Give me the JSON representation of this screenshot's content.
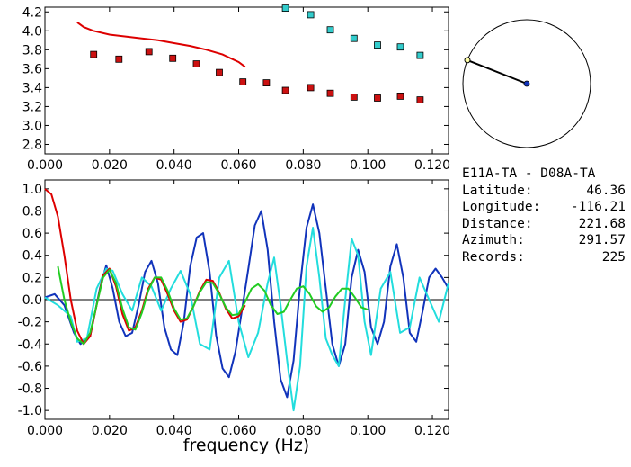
{
  "chart_data": [
    {
      "type": "scatter",
      "xlim": [
        0.0,
        0.125
      ],
      "ylim": [
        2.7,
        4.25
      ],
      "xticks": [
        "0.000",
        "0.020",
        "0.040",
        "0.060",
        "0.080",
        "0.100",
        "0.120"
      ],
      "yticks": [
        "2.8",
        "3.0",
        "3.2",
        "3.4",
        "3.6",
        "3.8",
        "4.0",
        "4.2"
      ],
      "series": [
        {
          "kind": "line",
          "color": "#dd0000",
          "x": [
            0.01,
            0.012,
            0.015,
            0.02,
            0.025,
            0.03,
            0.035,
            0.04,
            0.045,
            0.05,
            0.055,
            0.06,
            0.062
          ],
          "y": [
            4.09,
            4.04,
            4.0,
            3.96,
            3.94,
            3.92,
            3.9,
            3.87,
            3.84,
            3.8,
            3.75,
            3.67,
            3.62
          ]
        },
        {
          "kind": "squares",
          "color": "#cc1111",
          "x": [
            0.0151,
            0.0229,
            0.0322,
            0.0396,
            0.0469,
            0.054,
            0.0613,
            0.0686,
            0.0745,
            0.0823,
            0.0884,
            0.0957,
            0.103,
            0.1101,
            0.1162
          ],
          "y": [
            3.75,
            3.7,
            3.78,
            3.71,
            3.65,
            3.56,
            3.46,
            3.45,
            3.37,
            3.4,
            3.34,
            3.3,
            3.29,
            3.31,
            3.27
          ]
        },
        {
          "kind": "squares",
          "color": "#33cccc",
          "x": [
            0.0745,
            0.0823,
            0.0884,
            0.0957,
            0.103,
            0.1101,
            0.1162
          ],
          "y": [
            4.24,
            4.17,
            4.01,
            3.92,
            3.85,
            3.83,
            3.74
          ]
        }
      ]
    },
    {
      "type": "line",
      "xlim": [
        0.0,
        0.125
      ],
      "ylim": [
        -1.08,
        1.08
      ],
      "xlabel": "frequency (Hz)",
      "xticks": [
        "0.000",
        "0.020",
        "0.040",
        "0.060",
        "0.080",
        "0.100",
        "0.120"
      ],
      "yticks": [
        "1.0",
        "0.8",
        "0.6",
        "0.4",
        "0.2",
        "0.0",
        "-0.2",
        "-0.4",
        "-0.6",
        "-0.8",
        "-1.0"
      ],
      "series": [
        {
          "color": "#1133bb",
          "x": [
            0.0,
            0.003,
            0.006,
            0.009,
            0.011,
            0.014,
            0.017,
            0.019,
            0.021,
            0.023,
            0.025,
            0.027,
            0.029,
            0.031,
            0.033,
            0.035,
            0.037,
            0.039,
            0.041,
            0.043,
            0.045,
            0.047,
            0.049,
            0.051,
            0.053,
            0.055,
            0.057,
            0.059,
            0.061,
            0.063,
            0.065,
            0.067,
            0.069,
            0.071,
            0.073,
            0.075,
            0.077,
            0.079,
            0.081,
            0.083,
            0.085,
            0.087,
            0.089,
            0.091,
            0.093,
            0.095,
            0.097,
            0.099,
            0.101,
            0.103,
            0.105,
            0.107,
            0.109,
            0.111,
            0.113,
            0.115,
            0.117,
            0.119,
            0.121,
            0.123,
            0.125
          ],
          "y": [
            0.02,
            0.05,
            -0.05,
            -0.3,
            -0.4,
            -0.33,
            0.1,
            0.31,
            0.1,
            -0.2,
            -0.33,
            -0.3,
            -0.05,
            0.25,
            0.35,
            0.15,
            -0.25,
            -0.45,
            -0.5,
            -0.2,
            0.3,
            0.56,
            0.6,
            0.25,
            -0.32,
            -0.62,
            -0.7,
            -0.47,
            -0.1,
            0.28,
            0.67,
            0.8,
            0.45,
            -0.2,
            -0.72,
            -0.88,
            -0.55,
            0.12,
            0.65,
            0.86,
            0.6,
            0.1,
            -0.4,
            -0.6,
            -0.4,
            0.2,
            0.45,
            0.25,
            -0.25,
            -0.4,
            -0.2,
            0.3,
            0.5,
            0.2,
            -0.3,
            -0.38,
            -0.1,
            0.2,
            0.28,
            0.2,
            0.1
          ]
        },
        {
          "color": "#22dddd",
          "x": [
            0.0,
            0.004,
            0.008,
            0.01,
            0.013,
            0.016,
            0.019,
            0.021,
            0.024,
            0.027,
            0.03,
            0.033,
            0.036,
            0.039,
            0.042,
            0.045,
            0.048,
            0.051,
            0.054,
            0.057,
            0.06,
            0.063,
            0.066,
            0.069,
            0.071,
            0.073,
            0.075,
            0.077,
            0.079,
            0.081,
            0.083,
            0.085,
            0.087,
            0.089,
            0.091,
            0.093,
            0.095,
            0.097,
            0.099,
            0.101,
            0.104,
            0.107,
            0.11,
            0.113,
            0.116,
            0.119,
            0.122,
            0.125
          ],
          "y": [
            0.02,
            -0.05,
            -0.15,
            -0.38,
            -0.35,
            0.1,
            0.28,
            0.26,
            0.05,
            -0.1,
            0.2,
            0.12,
            -0.1,
            0.1,
            0.26,
            0.05,
            -0.4,
            -0.45,
            0.2,
            0.35,
            -0.2,
            -0.52,
            -0.3,
            0.15,
            0.38,
            -0.05,
            -0.55,
            -1.0,
            -0.6,
            0.3,
            0.65,
            0.2,
            -0.35,
            -0.5,
            -0.6,
            0.0,
            0.55,
            0.4,
            -0.2,
            -0.5,
            0.1,
            0.25,
            -0.3,
            -0.25,
            0.2,
            0.0,
            -0.2,
            0.15
          ]
        },
        {
          "color": "#dd0000",
          "x": [
            0.0,
            0.002,
            0.004,
            0.006,
            0.008,
            0.01,
            0.012,
            0.014,
            0.016,
            0.018,
            0.02,
            0.022,
            0.024,
            0.026,
            0.028,
            0.03,
            0.032,
            0.034,
            0.036,
            0.038,
            0.04,
            0.042,
            0.044,
            0.046,
            0.048,
            0.05,
            0.052,
            0.054,
            0.056,
            0.058,
            0.06,
            0.062
          ],
          "y": [
            1.0,
            0.95,
            0.75,
            0.4,
            0.0,
            -0.28,
            -0.4,
            -0.33,
            -0.05,
            0.22,
            0.28,
            0.12,
            -0.13,
            -0.28,
            -0.25,
            -0.1,
            0.1,
            0.2,
            0.18,
            0.05,
            -0.1,
            -0.2,
            -0.18,
            -0.06,
            0.08,
            0.18,
            0.17,
            0.06,
            -0.08,
            -0.17,
            -0.15,
            -0.05
          ]
        },
        {
          "color": "#22cc22",
          "x": [
            0.004,
            0.006,
            0.008,
            0.01,
            0.012,
            0.014,
            0.016,
            0.018,
            0.02,
            0.022,
            0.024,
            0.026,
            0.028,
            0.03,
            0.032,
            0.034,
            0.036,
            0.038,
            0.04,
            0.042,
            0.044,
            0.046,
            0.048,
            0.05,
            0.052,
            0.054,
            0.056,
            0.058,
            0.06,
            0.062,
            0.064,
            0.066,
            0.068,
            0.07,
            0.072,
            0.074,
            0.076,
            0.078,
            0.08,
            0.082,
            0.084,
            0.086,
            0.088,
            0.09,
            0.092,
            0.094,
            0.096,
            0.098,
            0.1
          ],
          "y": [
            0.3,
            0.0,
            -0.2,
            -0.35,
            -0.4,
            -0.3,
            -0.05,
            0.2,
            0.27,
            0.15,
            -0.08,
            -0.25,
            -0.27,
            -0.12,
            0.08,
            0.2,
            0.2,
            0.08,
            -0.08,
            -0.18,
            -0.17,
            -0.06,
            0.07,
            0.16,
            0.15,
            0.05,
            -0.07,
            -0.14,
            -0.13,
            -0.02,
            0.1,
            0.14,
            0.08,
            -0.05,
            -0.13,
            -0.11,
            0.0,
            0.1,
            0.12,
            0.05,
            -0.06,
            -0.11,
            -0.07,
            0.03,
            0.1,
            0.1,
            0.02,
            -0.07,
            -0.09
          ]
        }
      ]
    }
  ],
  "info": {
    "station_pair": "E11A-TA - D08A-TA",
    "rows": [
      {
        "label": "Latitude:",
        "value": "46.36"
      },
      {
        "label": "Longitude:",
        "value": "-116.21"
      },
      {
        "label": "Distance:",
        "value": "221.68"
      },
      {
        "label": "Azimuth:",
        "value": "291.57"
      },
      {
        "label": "Records:",
        "value": "225"
      }
    ]
  },
  "azimuth_dial": {
    "azimuth_deg": 291.57
  }
}
